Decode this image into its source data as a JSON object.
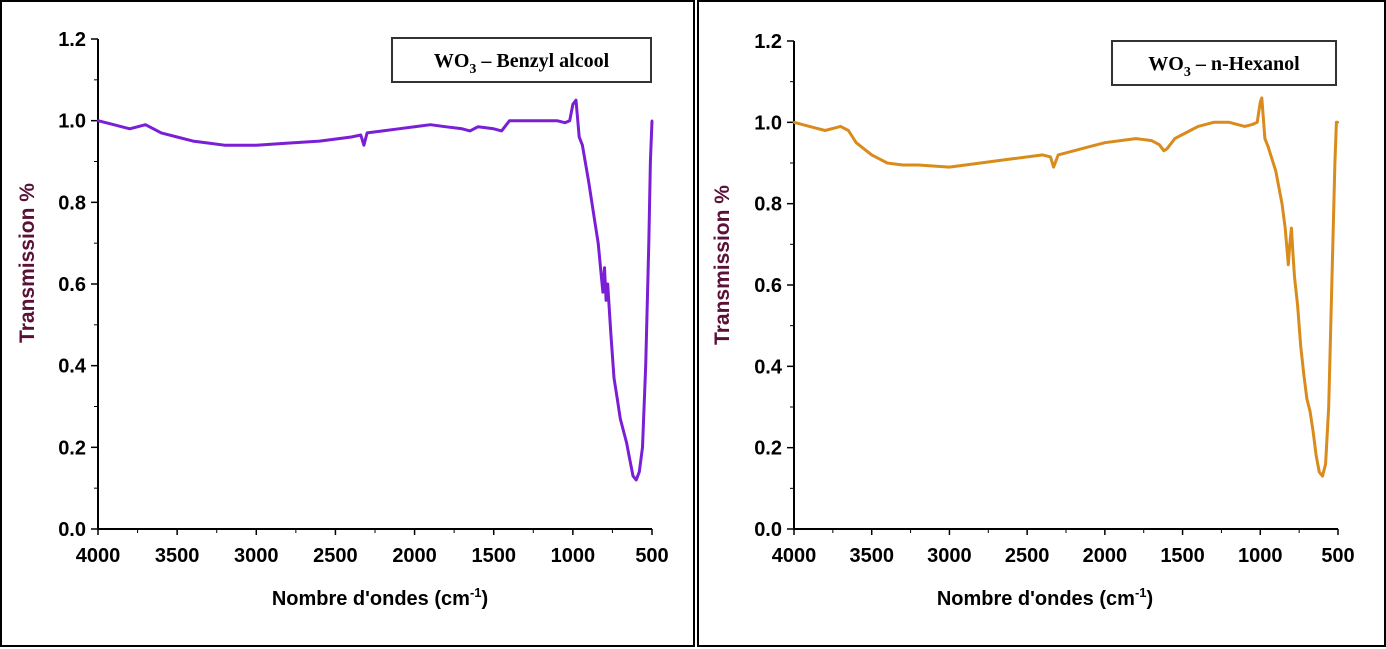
{
  "chart_data": [
    {
      "type": "line",
      "title": "",
      "legend_label": "WO3 – Benzyl alcool",
      "legend_main": "WO",
      "legend_sub": "3",
      "legend_rest": " – Benzyl alcool",
      "legend_position": "top-right",
      "xlabel": "Nombre d'ondes (cm",
      "xlabel_sup": "-1",
      "xlabel_end": ")",
      "ylabel": "Transmission %",
      "ylabel_color": "#5a1037",
      "xlim": [
        4000,
        500
      ],
      "ylim": [
        0.0,
        1.2
      ],
      "xticks": [
        "4000",
        "3500",
        "3000",
        "2500",
        "2000",
        "1500",
        "1000",
        "500"
      ],
      "yticks": [
        "0.0",
        "0.2",
        "0.4",
        "0.6",
        "0.8",
        "1.0",
        "1.2"
      ],
      "series": [
        {
          "name": "WO3 – Benzyl alcool",
          "color": "#7a1fd6",
          "x": [
            4000,
            3900,
            3800,
            3700,
            3600,
            3500,
            3400,
            3300,
            3200,
            3000,
            2800,
            2600,
            2400,
            2340,
            2320,
            2300,
            2200,
            2100,
            2000,
            1900,
            1800,
            1700,
            1650,
            1600,
            1500,
            1450,
            1400,
            1350,
            1300,
            1200,
            1100,
            1050,
            1020,
            1000,
            980,
            960,
            940,
            900,
            860,
            840,
            820,
            810,
            800,
            790,
            780,
            760,
            740,
            720,
            700,
            680,
            660,
            640,
            620,
            600,
            580,
            560,
            540,
            520,
            510,
            500
          ],
          "y": [
            1.0,
            0.99,
            0.98,
            0.99,
            0.97,
            0.96,
            0.95,
            0.945,
            0.94,
            0.94,
            0.945,
            0.95,
            0.96,
            0.965,
            0.94,
            0.97,
            0.975,
            0.98,
            0.985,
            0.99,
            0.985,
            0.98,
            0.975,
            0.985,
            0.98,
            0.975,
            1.0,
            1.0,
            1.0,
            1.0,
            1.0,
            0.995,
            1.0,
            1.04,
            1.05,
            0.96,
            0.94,
            0.85,
            0.75,
            0.7,
            0.62,
            0.58,
            0.64,
            0.56,
            0.6,
            0.48,
            0.37,
            0.32,
            0.27,
            0.24,
            0.21,
            0.17,
            0.13,
            0.12,
            0.14,
            0.2,
            0.4,
            0.7,
            0.9,
            1.0
          ]
        }
      ]
    },
    {
      "type": "line",
      "title": "",
      "legend_label": "WO3 – n-Hexanol",
      "legend_main": "WO",
      "legend_sub": "3",
      "legend_rest": " – n-Hexanol",
      "legend_position": "top-right",
      "xlabel": "Nombre d'ondes (cm",
      "xlabel_sup": "-1",
      "xlabel_end": ")",
      "ylabel": "Transmission %",
      "ylabel_color": "#5a1037",
      "xlim": [
        4000,
        500
      ],
      "ylim": [
        0.0,
        1.2
      ],
      "xticks": [
        "4000",
        "3500",
        "3000",
        "2500",
        "2000",
        "1500",
        "1000",
        "500"
      ],
      "yticks": [
        "0.0",
        "0.2",
        "0.4",
        "0.6",
        "0.8",
        "1.0",
        "1.2"
      ],
      "series": [
        {
          "name": "WO3 – n-Hexanol",
          "color": "#d98b1c",
          "x": [
            4000,
            3900,
            3800,
            3700,
            3650,
            3600,
            3500,
            3400,
            3300,
            3200,
            3000,
            2800,
            2600,
            2400,
            2350,
            2330,
            2300,
            2200,
            2100,
            2000,
            1900,
            1800,
            1700,
            1650,
            1620,
            1600,
            1550,
            1500,
            1400,
            1300,
            1200,
            1100,
            1050,
            1020,
            1000,
            990,
            970,
            950,
            900,
            860,
            840,
            820,
            810,
            800,
            790,
            780,
            760,
            740,
            720,
            700,
            680,
            660,
            640,
            620,
            600,
            580,
            560,
            540,
            520,
            510,
            500
          ],
          "y": [
            1.0,
            0.99,
            0.98,
            0.99,
            0.98,
            0.95,
            0.92,
            0.9,
            0.895,
            0.895,
            0.89,
            0.9,
            0.91,
            0.92,
            0.915,
            0.89,
            0.92,
            0.93,
            0.94,
            0.95,
            0.955,
            0.96,
            0.955,
            0.945,
            0.93,
            0.935,
            0.96,
            0.97,
            0.99,
            1.0,
            1.0,
            0.99,
            0.995,
            1.0,
            1.05,
            1.06,
            0.96,
            0.94,
            0.88,
            0.8,
            0.74,
            0.65,
            0.7,
            0.74,
            0.68,
            0.62,
            0.55,
            0.45,
            0.38,
            0.32,
            0.29,
            0.24,
            0.18,
            0.14,
            0.13,
            0.16,
            0.3,
            0.6,
            0.9,
            1.0,
            1.0
          ]
        }
      ]
    }
  ]
}
